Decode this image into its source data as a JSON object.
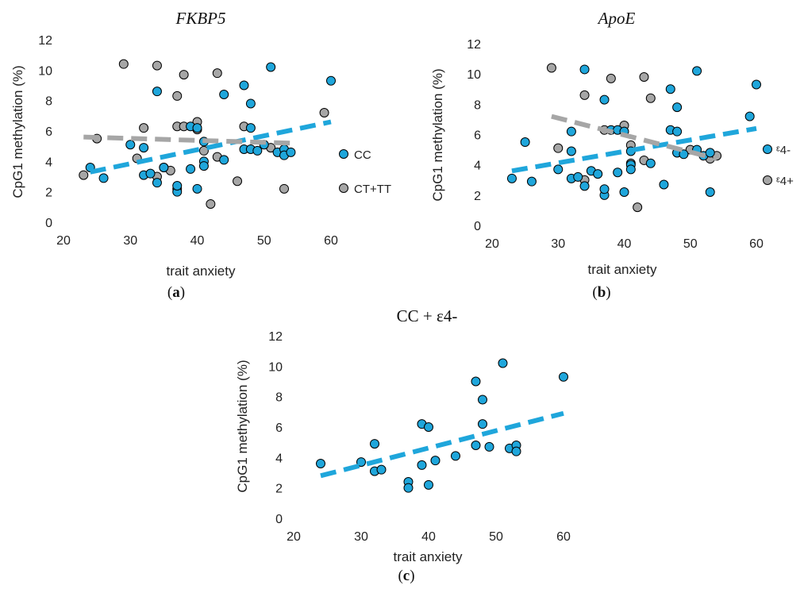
{
  "colors": {
    "series_a": "#1fa6db",
    "series_b": "#a6a6a6",
    "point_stroke": "#000000"
  },
  "chart_data": [
    {
      "type": "scatter",
      "title": "FKBP5",
      "title_style": "italic",
      "caption_letter": "a",
      "xlabel": "trait anxiety",
      "ylabel": "CpG1 methylation (%)",
      "xlim": [
        20,
        60
      ],
      "ylim": [
        0,
        12
      ],
      "xticks": [
        20,
        30,
        40,
        50,
        60
      ],
      "yticks": [
        0,
        2,
        4,
        6,
        8,
        10,
        12
      ],
      "grid": false,
      "legend_position": "right",
      "series": [
        {
          "name": "CC",
          "color": "#1fa6db",
          "points": [
            [
              24,
              3.6
            ],
            [
              26,
              2.9
            ],
            [
              30,
              5.1
            ],
            [
              32,
              4.9
            ],
            [
              32,
              3.1
            ],
            [
              33,
              3.2
            ],
            [
              34,
              8.6
            ],
            [
              34,
              2.6
            ],
            [
              35,
              3.6
            ],
            [
              37,
              2.0
            ],
            [
              37,
              2.4
            ],
            [
              39,
              3.5
            ],
            [
              39,
              6.3
            ],
            [
              40,
              6.2
            ],
            [
              40,
              2.2
            ],
            [
              41,
              4.0
            ],
            [
              41,
              3.7
            ],
            [
              41,
              5.3
            ],
            [
              44,
              8.4
            ],
            [
              44,
              4.1
            ],
            [
              47,
              9.0
            ],
            [
              47,
              4.8
            ],
            [
              48,
              7.8
            ],
            [
              48,
              6.2
            ],
            [
              48,
              4.8
            ],
            [
              49,
              4.7
            ],
            [
              50,
              5.1
            ],
            [
              51,
              10.2
            ],
            [
              52,
              4.6
            ],
            [
              53,
              4.8
            ],
            [
              53,
              4.4
            ],
            [
              54,
              4.6
            ],
            [
              60,
              9.3
            ]
          ],
          "trend": [
            [
              24,
              3.3
            ],
            [
              60,
              6.6
            ]
          ]
        },
        {
          "name": "CT+TT",
          "color": "#a6a6a6",
          "points": [
            [
              23,
              3.1
            ],
            [
              25,
              5.5
            ],
            [
              29,
              10.4
            ],
            [
              31,
              4.2
            ],
            [
              32,
              6.2
            ],
            [
              34,
              10.3
            ],
            [
              34,
              3.0
            ],
            [
              35,
              3.6
            ],
            [
              36,
              3.4
            ],
            [
              37,
              8.3
            ],
            [
              37,
              6.3
            ],
            [
              37,
              2.2
            ],
            [
              38,
              9.7
            ],
            [
              38,
              6.3
            ],
            [
              40,
              6.6
            ],
            [
              40,
              6.1
            ],
            [
              41,
              4.7
            ],
            [
              42,
              1.2
            ],
            [
              43,
              9.8
            ],
            [
              43,
              4.3
            ],
            [
              46,
              2.7
            ],
            [
              47,
              6.3
            ],
            [
              51,
              4.9
            ],
            [
              53,
              2.2
            ],
            [
              59,
              7.2
            ]
          ],
          "trend": [
            [
              23,
              5.6
            ],
            [
              54,
              5.2
            ]
          ]
        }
      ]
    },
    {
      "type": "scatter",
      "title": "ApoE",
      "title_style": "italic",
      "caption_letter": "b",
      "xlabel": "trait anxiety",
      "ylabel": "CpG1 methylation  (%)",
      "xlim": [
        20,
        60
      ],
      "ylim": [
        0,
        12
      ],
      "xticks": [
        20,
        30,
        40,
        50,
        60
      ],
      "yticks": [
        0,
        2,
        4,
        6,
        8,
        10,
        12
      ],
      "grid": false,
      "legend_position": "right",
      "series": [
        {
          "name": "ᵋ4-",
          "color": "#1fa6db",
          "points": [
            [
              23,
              3.1
            ],
            [
              25,
              5.5
            ],
            [
              26,
              2.9
            ],
            [
              30,
              3.7
            ],
            [
              32,
              6.2
            ],
            [
              32,
              4.9
            ],
            [
              32,
              3.1
            ],
            [
              33,
              3.2
            ],
            [
              34,
              10.3
            ],
            [
              34,
              2.6
            ],
            [
              35,
              3.6
            ],
            [
              36,
              3.4
            ],
            [
              37,
              8.3
            ],
            [
              37,
              2.0
            ],
            [
              37,
              2.4
            ],
            [
              38,
              6.3
            ],
            [
              39,
              3.5
            ],
            [
              39,
              6.3
            ],
            [
              40,
              6.2
            ],
            [
              40,
              2.2
            ],
            [
              41,
              4.0
            ],
            [
              41,
              3.7
            ],
            [
              41,
              4.9
            ],
            [
              44,
              4.1
            ],
            [
              46,
              2.7
            ],
            [
              47,
              9.0
            ],
            [
              47,
              6.3
            ],
            [
              48,
              6.2
            ],
            [
              48,
              7.8
            ],
            [
              48,
              4.8
            ],
            [
              49,
              4.7
            ],
            [
              51,
              10.2
            ],
            [
              51,
              5.0
            ],
            [
              52,
              4.6
            ],
            [
              53,
              4.8
            ],
            [
              53,
              2.2
            ],
            [
              59,
              7.2
            ],
            [
              60,
              9.3
            ]
          ],
          "trend": [
            [
              23,
              3.6
            ],
            [
              60,
              6.4
            ]
          ]
        },
        {
          "name": "ᵋ4+",
          "color": "#a6a6a6",
          "points": [
            [
              29,
              10.4
            ],
            [
              30,
              5.1
            ],
            [
              34,
              8.6
            ],
            [
              34,
              3.0
            ],
            [
              37,
              6.3
            ],
            [
              38,
              9.7
            ],
            [
              40,
              6.6
            ],
            [
              41,
              4.1
            ],
            [
              41,
              5.3
            ],
            [
              42,
              1.2
            ],
            [
              43,
              9.8
            ],
            [
              43,
              4.3
            ],
            [
              44,
              8.4
            ],
            [
              48,
              4.8
            ],
            [
              50,
              5.0
            ],
            [
              53,
              4.4
            ],
            [
              54,
              4.6
            ]
          ],
          "trend": [
            [
              29,
              7.2
            ],
            [
              54,
              4.4
            ]
          ]
        }
      ]
    },
    {
      "type": "scatter",
      "title": "CC + ε4-",
      "title_style": "plain",
      "caption_letter": "c",
      "xlabel": "trait anxiety",
      "ylabel": "CpG1 methylation (%)",
      "xlim": [
        20,
        60
      ],
      "ylim": [
        0,
        12
      ],
      "xticks": [
        20,
        30,
        40,
        50,
        60
      ],
      "yticks": [
        0,
        2,
        4,
        6,
        8,
        10,
        12
      ],
      "grid": false,
      "legend_position": "none",
      "series": [
        {
          "name": "",
          "color": "#1fa6db",
          "points": [
            [
              24,
              3.6
            ],
            [
              30,
              3.7
            ],
            [
              32,
              4.9
            ],
            [
              32,
              3.1
            ],
            [
              33,
              3.2
            ],
            [
              37,
              2.4
            ],
            [
              37,
              2.0
            ],
            [
              39,
              6.2
            ],
            [
              39,
              3.5
            ],
            [
              40,
              6.0
            ],
            [
              40,
              2.2
            ],
            [
              41,
              3.8
            ],
            [
              44,
              4.1
            ],
            [
              47,
              9.0
            ],
            [
              47,
              4.8
            ],
            [
              48,
              7.8
            ],
            [
              48,
              6.2
            ],
            [
              49,
              4.7
            ],
            [
              51,
              10.2
            ],
            [
              52,
              4.6
            ],
            [
              53,
              4.8
            ],
            [
              53,
              4.4
            ],
            [
              60,
              9.3
            ]
          ],
          "trend": [
            [
              24,
              2.8
            ],
            [
              60,
              6.9
            ]
          ]
        }
      ]
    }
  ]
}
